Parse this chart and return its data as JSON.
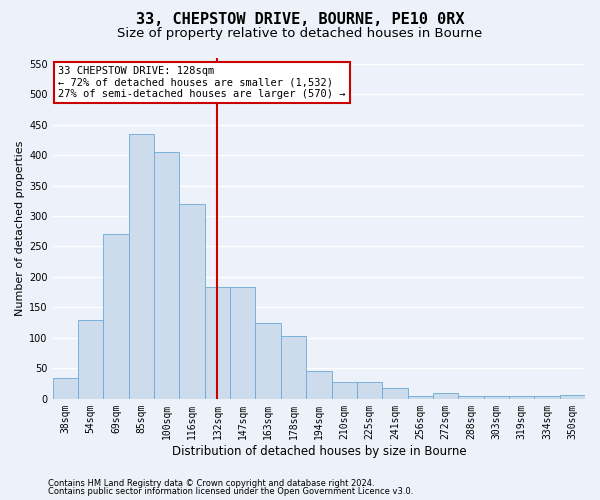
{
  "title": "33, CHEPSTOW DRIVE, BOURNE, PE10 0RX",
  "subtitle": "Size of property relative to detached houses in Bourne",
  "xlabel": "Distribution of detached houses by size in Bourne",
  "ylabel": "Number of detached properties",
  "categories": [
    "38sqm",
    "54sqm",
    "69sqm",
    "85sqm",
    "100sqm",
    "116sqm",
    "132sqm",
    "147sqm",
    "163sqm",
    "178sqm",
    "194sqm",
    "210sqm",
    "225sqm",
    "241sqm",
    "256sqm",
    "272sqm",
    "288sqm",
    "303sqm",
    "319sqm",
    "334sqm",
    "350sqm"
  ],
  "values": [
    35,
    130,
    270,
    435,
    405,
    320,
    183,
    183,
    125,
    103,
    45,
    28,
    28,
    18,
    4,
    9,
    4,
    4,
    4,
    4,
    7
  ],
  "bar_color": "#ccdcec",
  "bar_edge_color": "#6aaad4",
  "vline_x_index": 6,
  "vline_color": "#cc0000",
  "ann_line1": "33 CHEPSTOW DRIVE: 128sqm",
  "ann_line2": "← 72% of detached houses are smaller (1,532)",
  "ann_line3": "27% of semi-detached houses are larger (570) →",
  "ann_box_face": "#ffffff",
  "ann_box_edge": "#cc0000",
  "ylim_max": 560,
  "yticks": [
    0,
    50,
    100,
    150,
    200,
    250,
    300,
    350,
    400,
    450,
    500,
    550
  ],
  "footnote1": "Contains HM Land Registry data © Crown copyright and database right 2024.",
  "footnote2": "Contains public sector information licensed under the Open Government Licence v3.0.",
  "bg_color": "#edf2fa",
  "grid_color": "#ffffff",
  "title_fontsize": 11,
  "subtitle_fontsize": 9.5,
  "tick_fontsize": 7,
  "ylabel_fontsize": 8,
  "xlabel_fontsize": 8.5,
  "ann_fontsize": 7.5,
  "footnote_fontsize": 6
}
